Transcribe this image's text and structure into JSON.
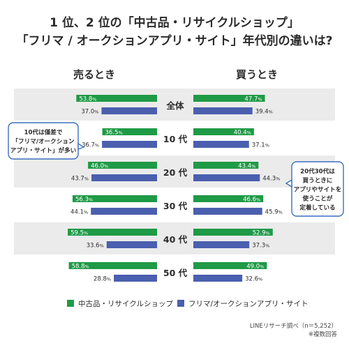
{
  "title_line1": "1 位、2 位の「中古品・リサイクルショップ」",
  "title_line2": "「フリマ / オークションアプリ・サイト」年代別の違いは?",
  "colors": {
    "series_a": "#1f9a46",
    "series_b": "#4a5fae",
    "band": "#ebebeb",
    "text": "#2b2b2b",
    "callout_border": "#3b6fbf"
  },
  "chart_data": {
    "type": "bar",
    "orientation": "horizontal-butterfly",
    "categories": [
      "全体",
      "10 代",
      "20 代",
      "30 代",
      "40 代",
      "50 代"
    ],
    "panels": [
      {
        "name": "売るとき",
        "series": [
          {
            "name": "中古品・リサイクルショップ",
            "values": [
              53.8,
              36.5,
              46.0,
              56.3,
              59.5,
              58.8
            ]
          },
          {
            "name": "フリマ/オークションアプリ・サイト",
            "values": [
              37.0,
              36.7,
              43.7,
              44.1,
              33.6,
              28.8
            ]
          }
        ]
      },
      {
        "name": "買うとき",
        "series": [
          {
            "name": "中古品・リサイクルショップ",
            "values": [
              47.7,
              40.4,
              43.4,
              46.6,
              52.9,
              49.0
            ]
          },
          {
            "name": "フリマ/オークションアプリ・サイト",
            "values": [
              39.4,
              37.1,
              44.3,
              45.9,
              37.3,
              32.6
            ]
          }
        ]
      }
    ],
    "value_suffix": "%",
    "xlim": [
      0,
      70
    ],
    "legend": [
      "中古品・リサイクルショップ",
      "フリマ/オークションアプリ・サイト"
    ],
    "legend_position": "bottom",
    "annotations": [
      {
        "lines": [
          "10代は僅差で",
          "「フリマ/オークション",
          "アプリ・サイト」が多い"
        ]
      },
      {
        "lines": [
          "20代30代は",
          "買うときに",
          "アプリやサイトを",
          "使うことが",
          "定着している"
        ]
      }
    ]
  },
  "source": "LINEリサーチ調べ（n＝5,252）",
  "note": "※複数回答"
}
